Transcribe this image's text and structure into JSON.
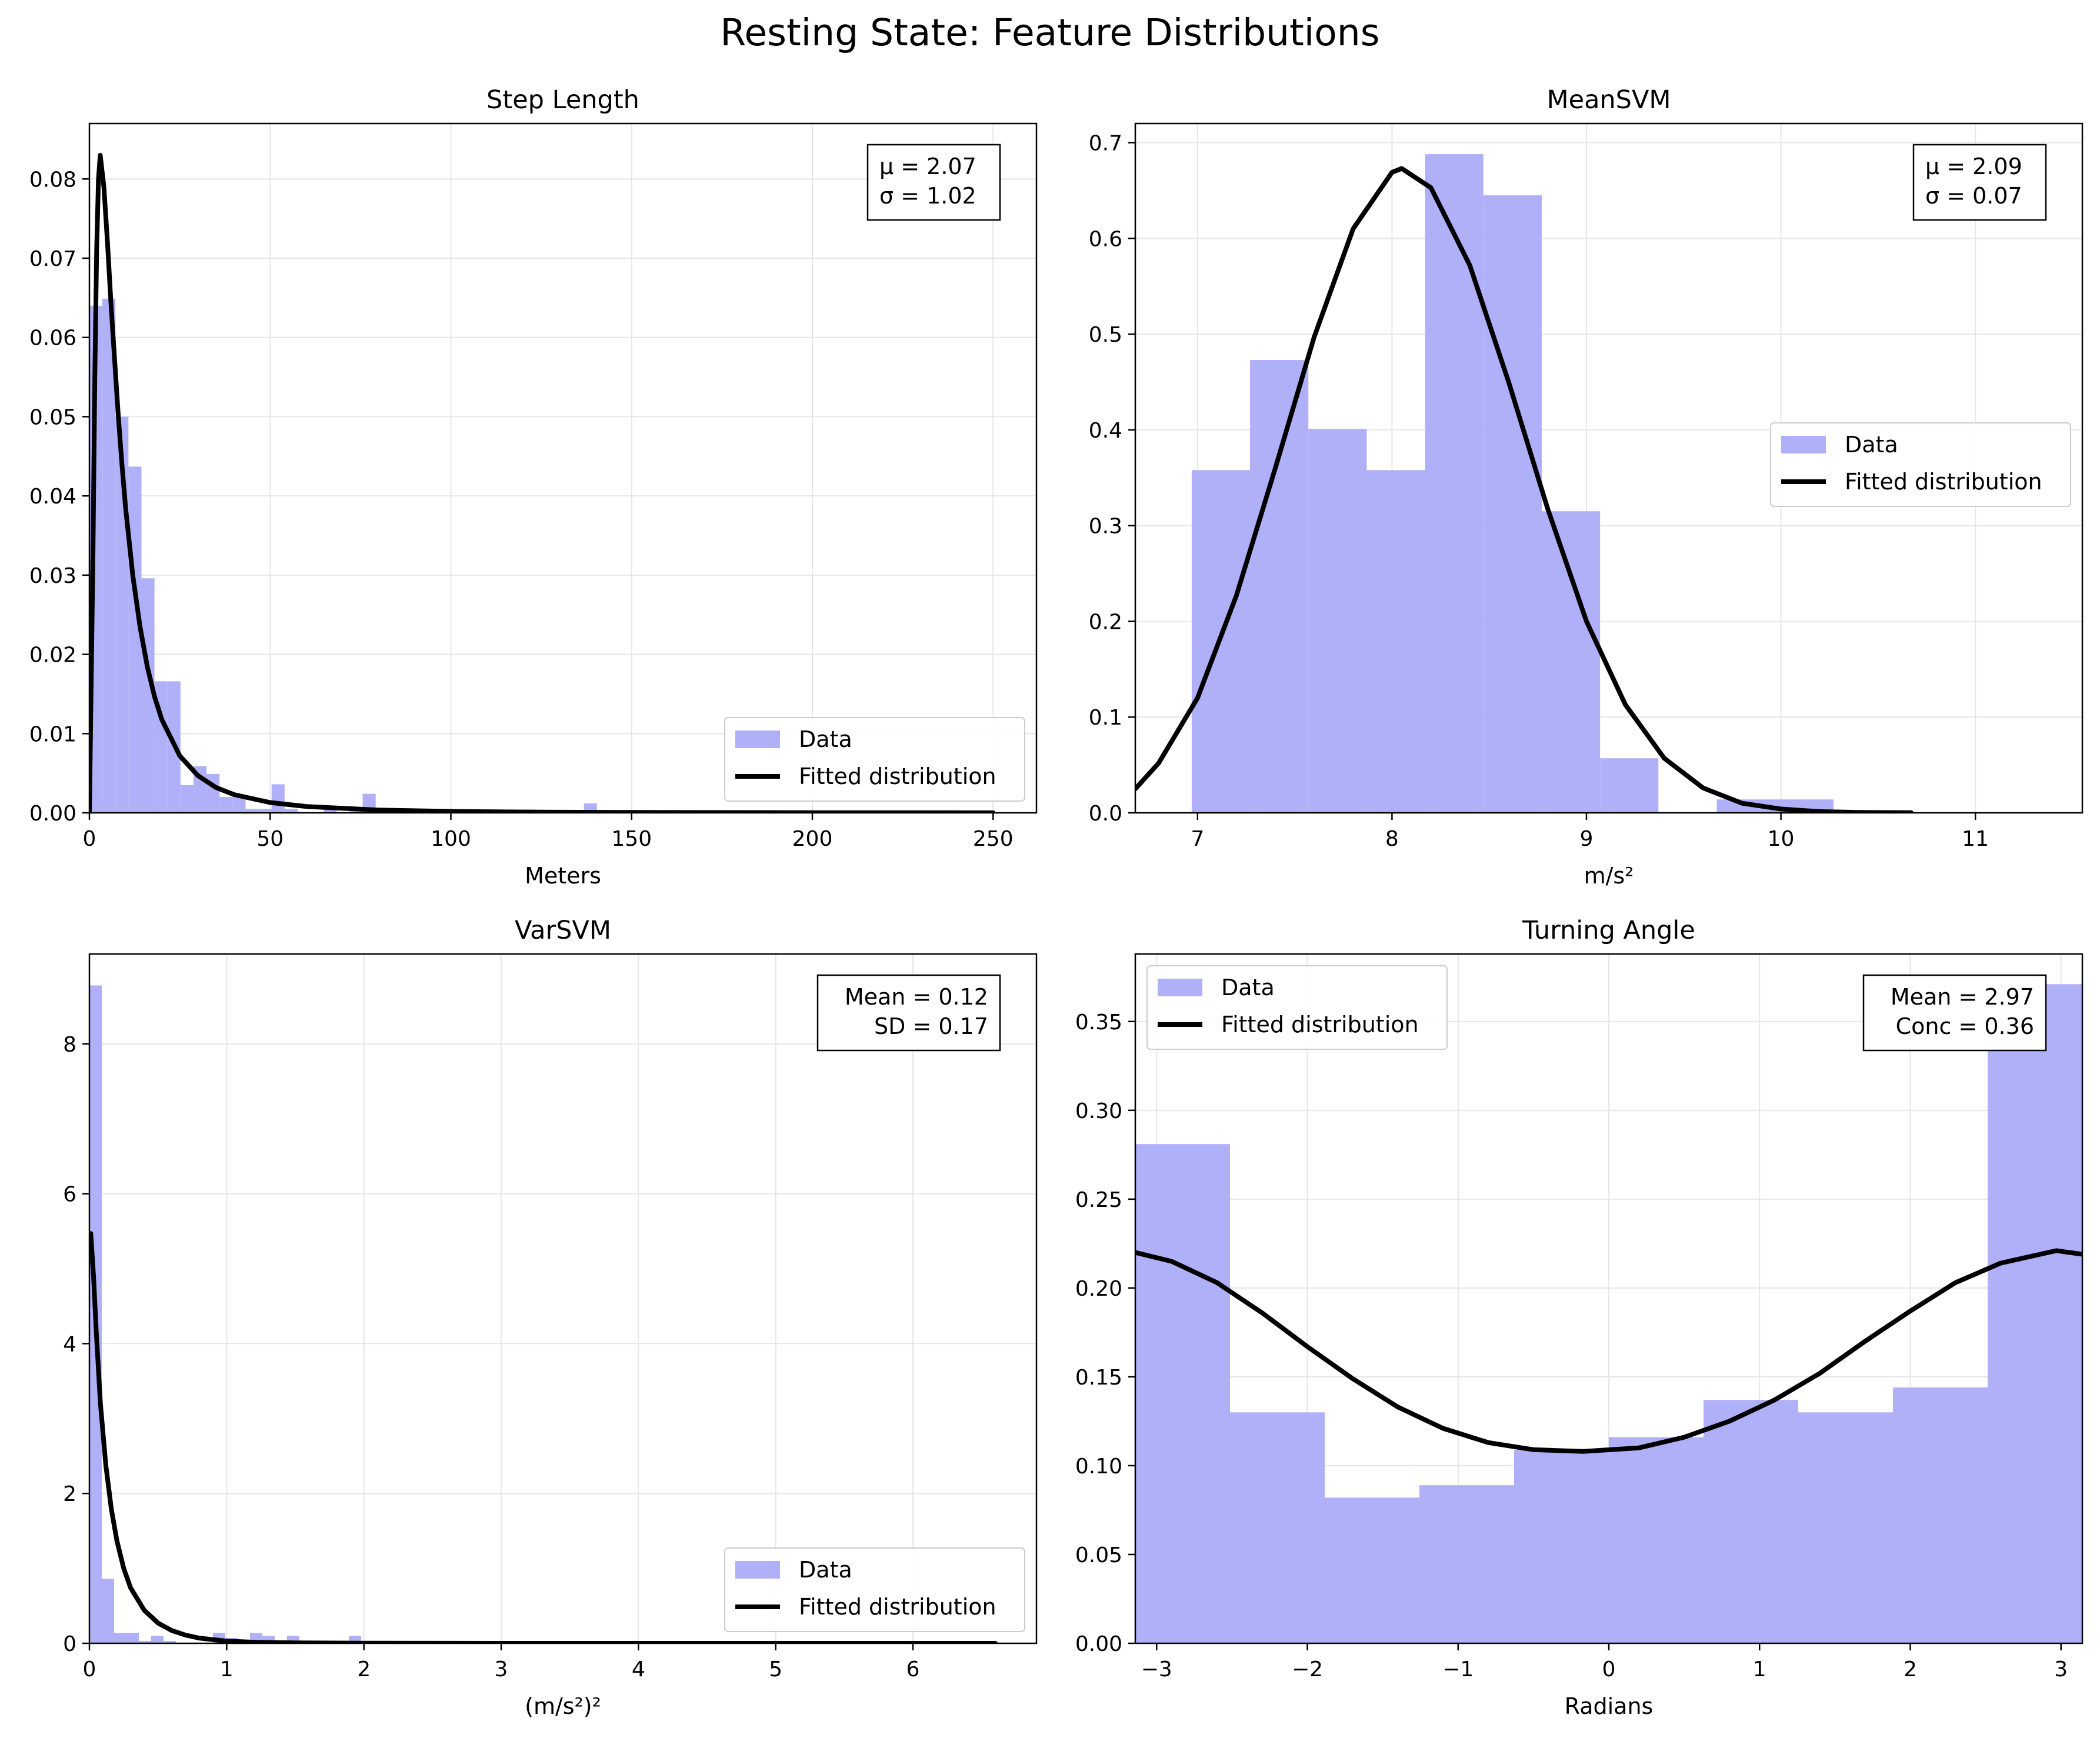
{
  "figure": {
    "title": "Resting State: Feature Distributions"
  },
  "legend_labels": {
    "data": "Data",
    "fit": "Fitted distribution"
  },
  "colors": {
    "hist": "#b0b0f8",
    "fit": "#000000",
    "grid": "#e6e6e6"
  },
  "chart_data": [
    {
      "id": "step",
      "type": "bar",
      "title": "Step Length",
      "xlabel": "Meters",
      "ylabel": "",
      "xlim": [
        0,
        262
      ],
      "ylim": [
        0,
        0.087
      ],
      "xticks": [
        "0",
        "50",
        "100",
        "150",
        "200",
        "250"
      ],
      "xtick_values": [
        0,
        50,
        100,
        150,
        200,
        250
      ],
      "yticks": [
        "0.00",
        "0.01",
        "0.02",
        "0.03",
        "0.04",
        "0.05",
        "0.06",
        "0.07",
        "0.08"
      ],
      "ytick_values": [
        0,
        0.01,
        0.02,
        0.03,
        0.04,
        0.05,
        0.06,
        0.07,
        0.08
      ],
      "grid": true,
      "legend_position": "lower right",
      "annotation": [
        "μ = 2.07",
        "σ = 1.02"
      ],
      "annotation_align": "left",
      "bins": [
        [
          0,
          3.6,
          0.064
        ],
        [
          3.6,
          7.2,
          0.0649
        ],
        [
          7.2,
          10.8,
          0.05
        ],
        [
          10.8,
          14.4,
          0.0437
        ],
        [
          14.4,
          18,
          0.0296
        ],
        [
          18,
          21.6,
          0.0166
        ],
        [
          21.6,
          25.2,
          0.0166
        ],
        [
          25.2,
          28.8,
          0.0035
        ],
        [
          28.8,
          32.4,
          0.0059
        ],
        [
          32.4,
          36,
          0.0049
        ],
        [
          36,
          39.6,
          0.002
        ],
        [
          39.6,
          43.2,
          0.002
        ],
        [
          43.2,
          46.8,
          0.0005
        ],
        [
          46.8,
          50.4,
          0.0005
        ],
        [
          50.4,
          54,
          0.0036
        ],
        [
          54,
          57.6,
          0.0005
        ],
        [
          64.8,
          68.4,
          0.0005
        ],
        [
          72,
          75.6,
          0.0005
        ],
        [
          75.6,
          79.2,
          0.0024
        ],
        [
          79.2,
          82.8,
          0.0005
        ],
        [
          136.8,
          140.4,
          0.0012
        ]
      ],
      "fit": {
        "x": [
          0,
          1,
          1.5,
          2,
          2.5,
          3,
          3.5,
          4,
          5,
          6,
          7,
          8,
          9,
          10,
          12,
          14,
          16,
          18,
          20,
          25,
          30,
          35,
          40,
          50,
          60,
          80,
          100,
          125,
          150,
          200,
          250
        ],
        "y": [
          0,
          0.033,
          0.055,
          0.071,
          0.08,
          0.083,
          0.081,
          0.079,
          0.072,
          0.064,
          0.057,
          0.05,
          0.044,
          0.0385,
          0.03,
          0.0235,
          0.0185,
          0.0147,
          0.0118,
          0.0072,
          0.0047,
          0.0032,
          0.0023,
          0.0013,
          0.0008,
          0.00035,
          0.00018,
          9e-05,
          5e-05,
          2e-05,
          1e-05
        ]
      }
    },
    {
      "id": "mean",
      "type": "bar",
      "title": "MeanSVM",
      "xlabel": "m/s²",
      "ylabel": "",
      "xlim": [
        6.68,
        11.55
      ],
      "ylim": [
        0,
        0.72
      ],
      "xticks": [
        "7",
        "8",
        "9",
        "10",
        "11"
      ],
      "xtick_values": [
        7,
        8,
        9,
        10,
        11
      ],
      "yticks": [
        "0.0",
        "0.1",
        "0.2",
        "0.3",
        "0.4",
        "0.5",
        "0.6",
        "0.7"
      ],
      "ytick_values": [
        0,
        0.1,
        0.2,
        0.3,
        0.4,
        0.5,
        0.6,
        0.7
      ],
      "grid": true,
      "legend_position": "center right",
      "annotation": [
        "μ = 2.09",
        "σ = 0.07"
      ],
      "annotation_align": "left",
      "bins": [
        [
          6.97,
          7.27,
          0.358
        ],
        [
          7.27,
          7.57,
          0.473
        ],
        [
          7.57,
          7.87,
          0.401
        ],
        [
          7.87,
          8.17,
          0.358
        ],
        [
          8.17,
          8.47,
          0.688
        ],
        [
          8.47,
          8.77,
          0.645
        ],
        [
          8.77,
          9.07,
          0.315
        ],
        [
          9.07,
          9.37,
          0.057
        ],
        [
          9.67,
          9.97,
          0.014
        ],
        [
          9.97,
          10.27,
          0.014
        ]
      ],
      "fit": {
        "x": [
          6.68,
          6.8,
          7.0,
          7.2,
          7.4,
          7.6,
          7.8,
          8.0,
          8.05,
          8.2,
          8.4,
          8.6,
          8.8,
          9.0,
          9.2,
          9.4,
          9.6,
          9.8,
          10.0,
          10.2,
          10.4,
          10.67
        ],
        "y": [
          0.025,
          0.052,
          0.12,
          0.227,
          0.36,
          0.497,
          0.61,
          0.669,
          0.673,
          0.653,
          0.572,
          0.45,
          0.318,
          0.2,
          0.113,
          0.057,
          0.026,
          0.01,
          0.004,
          0.0013,
          0.0004,
          0.0001
        ]
      }
    },
    {
      "id": "var",
      "type": "bar",
      "title": "VarSVM",
      "xlabel": "(m/s²)²",
      "ylabel": "",
      "xlim": [
        0,
        6.9
      ],
      "ylim": [
        0,
        9.2
      ],
      "xticks": [
        "0",
        "1",
        "2",
        "3",
        "4",
        "5",
        "6"
      ],
      "xtick_values": [
        0,
        1,
        2,
        3,
        4,
        5,
        6
      ],
      "yticks": [
        "0",
        "2",
        "4",
        "6",
        "8"
      ],
      "ytick_values": [
        0,
        2,
        4,
        6,
        8
      ],
      "grid": true,
      "legend_position": "lower right",
      "annotation": [
        "Mean = 0.12",
        "SD = 0.17"
      ],
      "annotation_align": "right",
      "bins": [
        [
          0,
          0.09,
          8.78
        ],
        [
          0.09,
          0.18,
          0.86
        ],
        [
          0.18,
          0.27,
          0.14
        ],
        [
          0.27,
          0.36,
          0.14
        ],
        [
          0.36,
          0.45,
          0.03
        ],
        [
          0.45,
          0.54,
          0.1
        ],
        [
          0.54,
          0.63,
          0.03
        ],
        [
          0.9,
          0.99,
          0.14
        ],
        [
          0.99,
          1.08,
          0.07
        ],
        [
          1.17,
          1.26,
          0.14
        ],
        [
          1.26,
          1.35,
          0.1
        ],
        [
          1.44,
          1.53,
          0.1
        ],
        [
          1.89,
          1.98,
          0.1
        ]
      ],
      "fit": {
        "x": [
          0.01,
          0.03,
          0.05,
          0.08,
          0.12,
          0.16,
          0.2,
          0.25,
          0.3,
          0.4,
          0.5,
          0.6,
          0.7,
          0.8,
          1.0,
          1.2,
          1.5,
          2,
          3,
          4,
          5,
          6,
          6.6
        ],
        "y": [
          5.47,
          4.9,
          4.15,
          3.2,
          2.37,
          1.79,
          1.37,
          1.0,
          0.74,
          0.44,
          0.27,
          0.17,
          0.11,
          0.07,
          0.03,
          0.015,
          0.006,
          0.002,
          0,
          0,
          0,
          0,
          0
        ]
      }
    },
    {
      "id": "turn",
      "type": "bar",
      "title": "Turning Angle",
      "xlabel": "Radians",
      "ylabel": "",
      "xlim": [
        -3.1416,
        3.1416
      ],
      "ylim": [
        0,
        0.388
      ],
      "xticks": [
        "−3",
        "−2",
        "−1",
        "0",
        "1",
        "2",
        "3"
      ],
      "xtick_values": [
        -3,
        -2,
        -1,
        0,
        1,
        2,
        3
      ],
      "yticks": [
        "0.00",
        "0.05",
        "0.10",
        "0.15",
        "0.20",
        "0.25",
        "0.30",
        "0.35"
      ],
      "ytick_values": [
        0,
        0.05,
        0.1,
        0.15,
        0.2,
        0.25,
        0.3,
        0.35
      ],
      "grid": true,
      "legend_position": "upper left",
      "annotation": [
        "Mean = 2.97",
        "Conc = 0.36"
      ],
      "annotation_align": "right",
      "bins": [
        [
          -3.1416,
          -2.5133,
          0.281
        ],
        [
          -2.5133,
          -1.885,
          0.13
        ],
        [
          -1.885,
          -1.2566,
          0.082
        ],
        [
          -1.2566,
          -0.6283,
          0.089
        ],
        [
          -0.6283,
          0,
          0.109
        ],
        [
          0,
          0.6283,
          0.116
        ],
        [
          0.6283,
          1.2566,
          0.137
        ],
        [
          1.2566,
          1.885,
          0.13
        ],
        [
          1.885,
          2.5133,
          0.144
        ],
        [
          2.5133,
          3.1416,
          0.371
        ]
      ],
      "fit": {
        "x": [
          -3.1416,
          -2.9,
          -2.6,
          -2.3,
          -2.0,
          -1.7,
          -1.4,
          -1.1,
          -0.8,
          -0.5,
          -0.17,
          0.2,
          0.5,
          0.8,
          1.1,
          1.4,
          1.7,
          2.0,
          2.3,
          2.6,
          2.97,
          3.1416
        ],
        "y": [
          0.22,
          0.215,
          0.203,
          0.186,
          0.167,
          0.149,
          0.133,
          0.121,
          0.113,
          0.109,
          0.108,
          0.11,
          0.116,
          0.125,
          0.137,
          0.152,
          0.17,
          0.187,
          0.203,
          0.214,
          0.221,
          0.219
        ]
      }
    }
  ]
}
